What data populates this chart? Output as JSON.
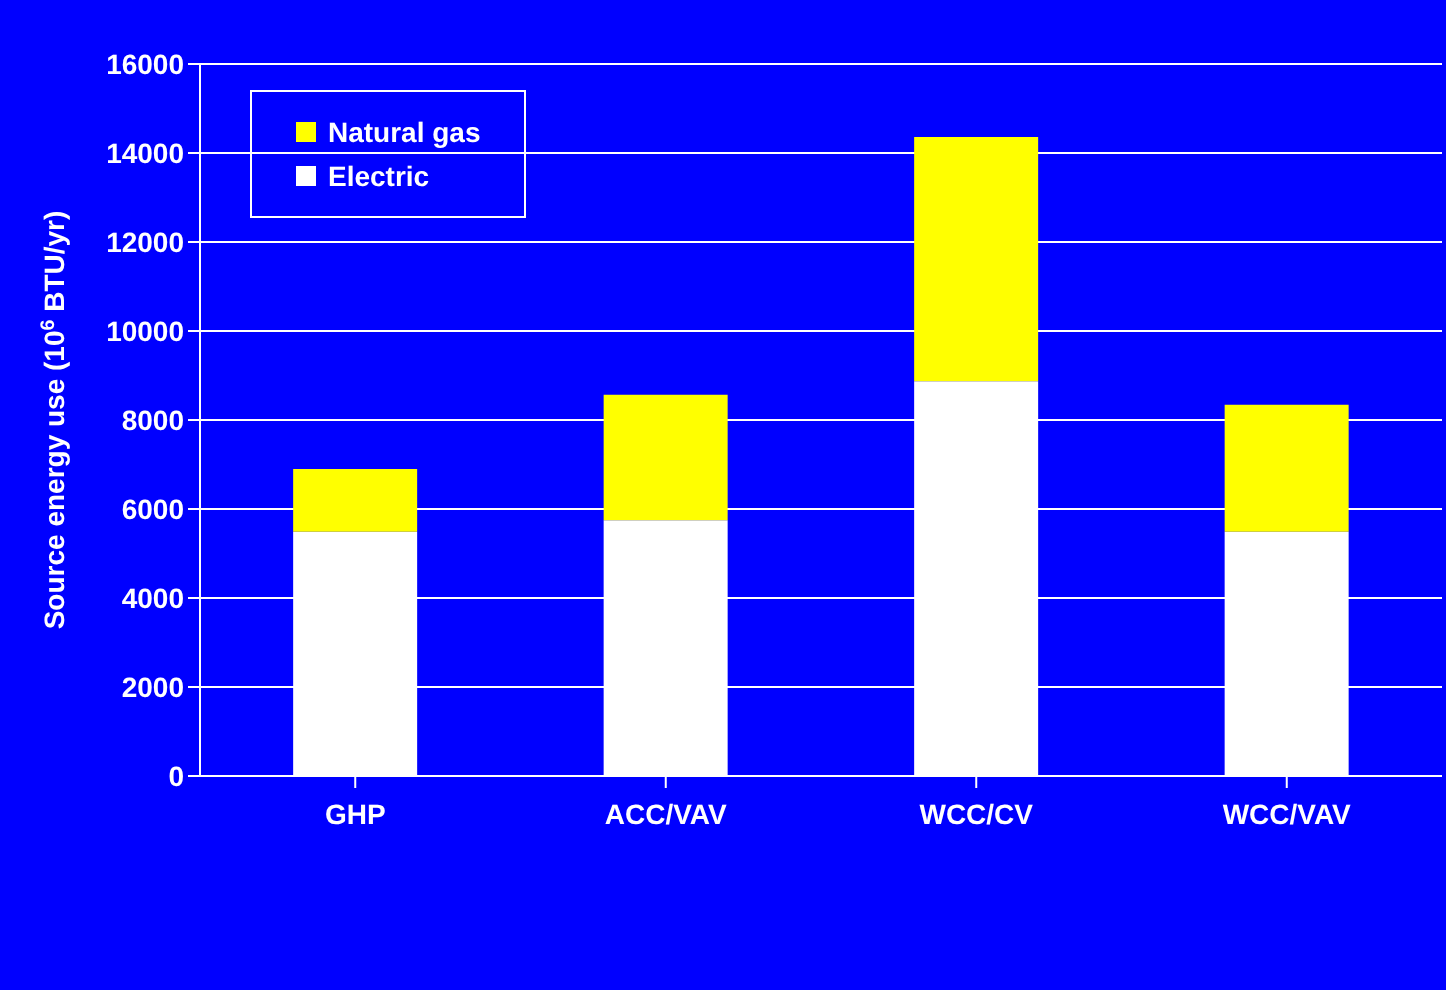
{
  "chart_data": {
    "type": "bar",
    "stacked": true,
    "ylabel": "Source energy use (10$^{6}$ BTU/yr)",
    "categories": [
      "GHP",
      "ACC/VAV",
      "WCC/CV",
      "WCC/VAV"
    ],
    "series": [
      {
        "name": "Electric",
        "color": "#ffffff",
        "values": [
          5490,
          5750,
          8870,
          5490
        ]
      },
      {
        "name": "Natural gas",
        "color": "#ffff00",
        "values": [
          1410,
          2820,
          5490,
          2850
        ]
      }
    ],
    "ylim": [
      0,
      16000
    ],
    "yticks": [
      0,
      2000,
      4000,
      6000,
      8000,
      10000,
      12000,
      14000,
      16000
    ],
    "grid": "y",
    "legend": "top left"
  }
}
